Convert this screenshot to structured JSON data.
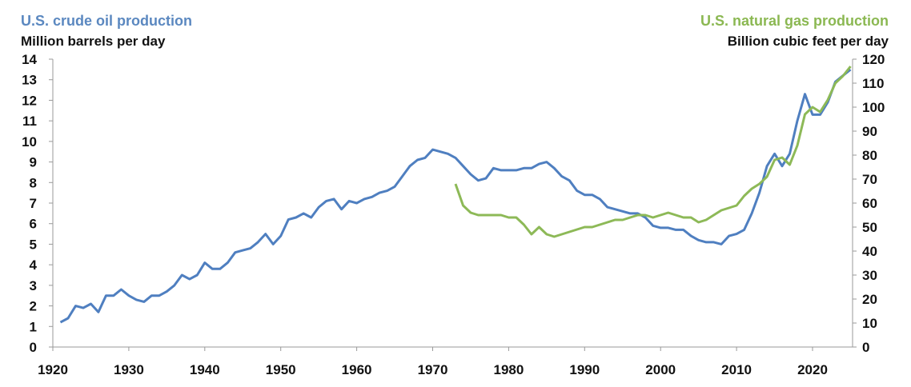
{
  "titles": {
    "left": "U.S. crude oil production",
    "left_unit": "Million barrels per day",
    "right": "U.S. natural gas production",
    "right_unit": "Billion cubic feet per day"
  },
  "colors": {
    "oil": "#4F7FC0",
    "gas": "#8DB957",
    "axis": "#999999"
  },
  "chart_data": {
    "type": "line",
    "title": "",
    "xlabel": "",
    "ylabel": "Million barrels per day",
    "y2label": "Billion cubic feet per day",
    "xlim": [
      1920,
      2026
    ],
    "ylim": [
      0,
      14
    ],
    "y2lim": [
      0,
      120
    ],
    "x_ticks": [
      1920,
      1930,
      1940,
      1950,
      1960,
      1970,
      1980,
      1990,
      2000,
      2010,
      2020
    ],
    "y_ticks": [
      0,
      1,
      2,
      3,
      4,
      5,
      6,
      7,
      8,
      9,
      10,
      11,
      12,
      13,
      14
    ],
    "y2_ticks": [
      0,
      10,
      20,
      30,
      40,
      50,
      60,
      70,
      80,
      90,
      100,
      110,
      120
    ],
    "grid": false,
    "legend": "axis titles (top-left blue, top-right green)",
    "series": [
      {
        "name": "U.S. crude oil production",
        "axis": "left",
        "x": [
          1921,
          1922,
          1923,
          1924,
          1925,
          1926,
          1927,
          1928,
          1929,
          1930,
          1931,
          1932,
          1933,
          1934,
          1935,
          1936,
          1937,
          1938,
          1939,
          1940,
          1941,
          1942,
          1943,
          1944,
          1945,
          1946,
          1947,
          1948,
          1949,
          1950,
          1951,
          1952,
          1953,
          1954,
          1955,
          1956,
          1957,
          1958,
          1959,
          1960,
          1961,
          1962,
          1963,
          1964,
          1965,
          1966,
          1967,
          1968,
          1969,
          1970,
          1971,
          1972,
          1973,
          1974,
          1975,
          1976,
          1977,
          1978,
          1979,
          1980,
          1981,
          1982,
          1983,
          1984,
          1985,
          1986,
          1987,
          1988,
          1989,
          1990,
          1991,
          1992,
          1993,
          1994,
          1995,
          1996,
          1997,
          1998,
          1999,
          2000,
          2001,
          2002,
          2003,
          2004,
          2005,
          2006,
          2007,
          2008,
          2009,
          2010,
          2011,
          2012,
          2013,
          2014,
          2015,
          2016,
          2017,
          2018,
          2019,
          2020,
          2021,
          2022,
          2023,
          2024,
          2025
        ],
        "values": [
          1.2,
          1.4,
          2.0,
          1.9,
          2.1,
          1.7,
          2.5,
          2.5,
          2.8,
          2.5,
          2.3,
          2.2,
          2.5,
          2.5,
          2.7,
          3.0,
          3.5,
          3.3,
          3.5,
          4.1,
          3.8,
          3.8,
          4.1,
          4.6,
          4.7,
          4.8,
          5.1,
          5.5,
          5.0,
          5.4,
          6.2,
          6.3,
          6.5,
          6.3,
          6.8,
          7.1,
          7.2,
          6.7,
          7.1,
          7.0,
          7.2,
          7.3,
          7.5,
          7.6,
          7.8,
          8.3,
          8.8,
          9.1,
          9.2,
          9.6,
          9.5,
          9.4,
          9.2,
          8.8,
          8.4,
          8.1,
          8.2,
          8.7,
          8.6,
          8.6,
          8.6,
          8.7,
          8.7,
          8.9,
          9.0,
          8.7,
          8.3,
          8.1,
          7.6,
          7.4,
          7.4,
          7.2,
          6.8,
          6.7,
          6.6,
          6.5,
          6.5,
          6.3,
          5.9,
          5.8,
          5.8,
          5.7,
          5.7,
          5.4,
          5.2,
          5.1,
          5.1,
          5.0,
          5.4,
          5.5,
          5.7,
          6.5,
          7.5,
          8.8,
          9.4,
          8.8,
          9.4,
          11.0,
          12.3,
          11.3,
          11.3,
          11.9,
          12.9,
          13.2,
          13.5
        ]
      },
      {
        "name": "U.S. natural gas production",
        "axis": "right",
        "x": [
          1973,
          1974,
          1975,
          1976,
          1977,
          1978,
          1979,
          1980,
          1981,
          1982,
          1983,
          1984,
          1985,
          1986,
          1987,
          1988,
          1989,
          1990,
          1991,
          1992,
          1993,
          1994,
          1995,
          1996,
          1997,
          1998,
          1999,
          2000,
          2001,
          2002,
          2003,
          2004,
          2005,
          2006,
          2007,
          2008,
          2009,
          2010,
          2011,
          2012,
          2013,
          2014,
          2015,
          2016,
          2017,
          2018,
          2019,
          2020,
          2021,
          2022,
          2023,
          2024,
          2025
        ],
        "values": [
          68,
          59,
          56,
          55,
          55,
          55,
          55,
          54,
          54,
          51,
          47,
          50,
          47,
          46,
          47,
          48,
          49,
          50,
          50,
          51,
          52,
          53,
          53,
          54,
          55,
          55,
          54,
          55,
          56,
          55,
          54,
          54,
          52,
          53,
          55,
          57,
          58,
          59,
          63,
          66,
          68,
          71,
          78,
          79,
          76,
          84,
          97,
          100,
          98,
          103,
          110,
          113,
          117
        ]
      }
    ]
  }
}
